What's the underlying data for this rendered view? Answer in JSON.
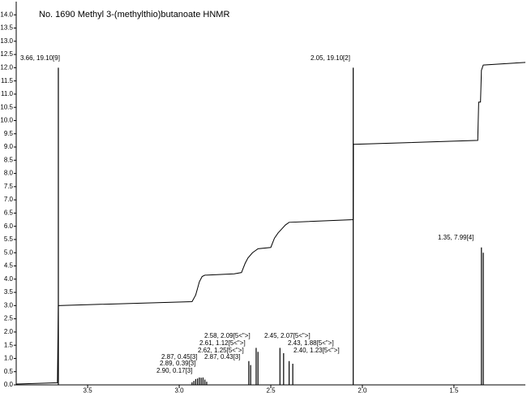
{
  "chart_data": {
    "type": "spectrum",
    "title": "No. 1690 Methyl 3-(methylthio)butanoate HNMR",
    "color": "#000000",
    "xlim": [
      3.89,
      1.11
    ],
    "ylim": [
      0,
      14.5
    ],
    "xticks": [
      3.5,
      {
        "value": 3.0,
        "label": "3.0"
      },
      2.5,
      {
        "value": 2.0,
        "label": "2.0"
      },
      1.5
    ],
    "yticks": [
      {
        "value": 0,
        "label": "0.0"
      },
      0.5,
      {
        "value": 1,
        "label": "1.0"
      },
      1.5,
      {
        "value": 2,
        "label": "2.0"
      },
      2.5,
      {
        "value": 3,
        "label": "3.0"
      },
      3.5,
      {
        "value": 4,
        "label": "4.0"
      },
      4.5,
      {
        "value": 5,
        "label": "5.0"
      },
      5.5,
      {
        "value": 6,
        "label": "6.0"
      },
      6.5,
      {
        "value": 7,
        "label": "7.0"
      },
      7.5,
      {
        "value": 8,
        "label": "8.0"
      },
      8.5,
      {
        "value": 9,
        "label": "9.0"
      },
      9.5,
      {
        "value": 10,
        "label": "10.0"
      },
      10.5,
      {
        "value": 11,
        "label": "11.0"
      },
      11.5,
      {
        "value": 12,
        "label": "12.0"
      },
      12.5,
      {
        "value": 13,
        "label": "13.0"
      },
      13.5,
      {
        "value": 14,
        "label": "14.0"
      }
    ],
    "peaks": {
      "x": [
        3.66,
        2.93,
        2.92,
        2.91,
        2.9,
        2.89,
        2.88,
        2.87,
        2.86,
        2.85,
        2.62,
        2.61,
        2.58,
        2.57,
        2.45,
        2.43,
        2.4,
        2.38,
        2.05,
        1.35,
        1.34
      ],
      "values": [
        12.0,
        0.1,
        0.15,
        0.22,
        0.24,
        0.28,
        0.27,
        0.28,
        0.2,
        0.12,
        0.9,
        0.75,
        1.4,
        1.25,
        1.4,
        1.2,
        0.9,
        0.8,
        12.0,
        5.2,
        5.0
      ]
    },
    "integral": {
      "x": [
        3.89,
        3.665,
        3.66,
        2.93,
        2.91,
        2.89,
        2.875,
        2.86,
        2.7,
        2.66,
        2.64,
        2.625,
        2.6,
        2.58,
        2.57,
        2.5,
        2.48,
        2.46,
        2.44,
        2.42,
        2.4,
        2.05,
        2.049,
        1.37,
        1.365,
        1.355,
        1.35,
        1.34,
        1.11
      ],
      "values": [
        0.03,
        0.08,
        3.0,
        3.15,
        3.4,
        3.9,
        4.1,
        4.15,
        4.2,
        4.25,
        4.6,
        4.8,
        5.0,
        5.1,
        5.15,
        5.2,
        5.55,
        5.75,
        5.9,
        6.05,
        6.15,
        6.25,
        9.1,
        9.25,
        10.7,
        10.7,
        11.9,
        12.1,
        12.2
      ]
    },
    "annotations": [
      "3.66, 19.10[9]",
      "2.05, 19.10[2]",
      "1.35, 7.99[4]",
      "2.58, 2.09[5<\">]",
      "2.61, 1.12[5<\">]",
      "2.62, 1.25[5<\">]",
      "2.87, 0.43[3]",
      "2.87, 0.45[3]",
      "2.89, 0.39[3]",
      "2.90, 0.17[3]",
      "2.45, 2.07[5<\">]",
      "2.43, 1.88[5<\">]",
      "2.40, 1.23[5<\">]"
    ]
  }
}
